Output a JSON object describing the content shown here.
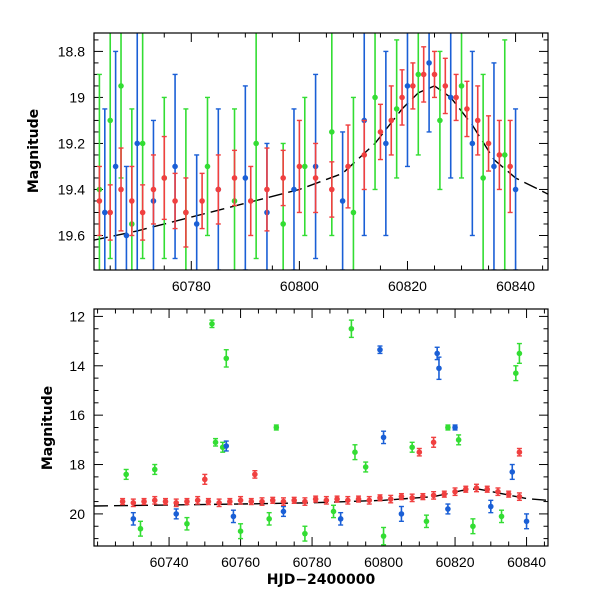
{
  "chart_data": [
    {
      "type": "scatter",
      "title": "",
      "xlabel": "",
      "ylabel": "Magnitude",
      "xlim": [
        60762,
        60846
      ],
      "ylim": [
        19.75,
        18.72
      ],
      "y_inverted": true,
      "grid": false,
      "legend": "none",
      "xticks_major": [
        60780,
        60800,
        60820,
        60840
      ],
      "xtick_labels": [
        "60780",
        "60800",
        "60820",
        "60840"
      ],
      "yticks_major": [
        18.8,
        19,
        19.2,
        19.4,
        19.6
      ],
      "ytick_labels": [
        "18.8",
        "19",
        "19.2",
        "19.4",
        "19.6"
      ],
      "model_curve": [
        [
          60762,
          19.62
        ],
        [
          60770,
          19.58
        ],
        [
          60780,
          19.52
        ],
        [
          60790,
          19.46
        ],
        [
          60800,
          19.4
        ],
        [
          60808,
          19.33
        ],
        [
          60814,
          19.2
        ],
        [
          60819,
          19.05
        ],
        [
          60822,
          18.98
        ],
        [
          60825,
          18.95
        ],
        [
          60828,
          19.0
        ],
        [
          60832,
          19.12
        ],
        [
          60836,
          19.27
        ],
        [
          60840,
          19.35
        ],
        [
          60846,
          19.42
        ]
      ],
      "series": [
        {
          "color": "#33dd33",
          "x": [
            60763,
            60765,
            60767,
            60769,
            60771,
            60775,
            60779,
            60783,
            60788,
            60792,
            60797,
            60801,
            60806,
            60810,
            60814,
            60818,
            60822,
            60826,
            60830,
            60834,
            60838
          ],
          "y": [
            19.4,
            19.1,
            18.95,
            19.55,
            19.2,
            19.35,
            19.5,
            19.3,
            19.45,
            19.2,
            19.55,
            19.3,
            19.15,
            19.5,
            19.0,
            19.05,
            18.9,
            19.1,
            18.95,
            19.35,
            19.25
          ],
          "err": [
            0.5,
            0.6,
            0.4,
            0.5,
            0.5,
            0.35,
            0.45,
            0.3,
            0.4,
            0.5,
            0.35,
            0.3,
            0.45,
            0.5,
            0.4,
            0.3,
            0.35,
            0.3,
            0.4,
            0.45,
            0.5
          ]
        },
        {
          "color": "#1a5fd6",
          "x": [
            60764,
            60766,
            60768,
            60770,
            60773,
            60777,
            60781,
            60785,
            60790,
            60794,
            60799,
            60803,
            60808,
            60812,
            60816,
            60820,
            60824,
            60828,
            60832,
            60836,
            60840
          ],
          "y": [
            19.5,
            19.3,
            19.6,
            19.2,
            19.45,
            19.3,
            19.55,
            19.4,
            19.35,
            19.5,
            19.4,
            19.3,
            19.45,
            19.1,
            19.2,
            18.95,
            18.85,
            19.0,
            19.2,
            19.3,
            19.4
          ],
          "err": [
            0.45,
            0.5,
            0.3,
            0.55,
            0.35,
            0.4,
            0.3,
            0.35,
            0.4,
            0.3,
            0.35,
            0.4,
            0.3,
            0.5,
            0.4,
            0.35,
            0.3,
            0.35,
            0.4,
            0.45,
            0.35
          ]
        },
        {
          "color": "#f04040",
          "x": [
            60763,
            60765,
            60767,
            60769,
            60771,
            60773,
            60775,
            60777,
            60779,
            60782,
            60785,
            60788,
            60791,
            60794,
            60797,
            60800,
            60803,
            60806,
            60809,
            60812,
            60815,
            60817,
            60819,
            60821,
            60823,
            60825,
            60827,
            60829,
            60831,
            60833,
            60835,
            60837,
            60839
          ],
          "y": [
            19.45,
            19.5,
            19.4,
            19.45,
            19.5,
            19.4,
            19.35,
            19.45,
            19.5,
            19.45,
            19.4,
            19.35,
            19.45,
            19.4,
            19.35,
            19.3,
            19.35,
            19.4,
            19.3,
            19.25,
            19.15,
            19.1,
            19.0,
            18.95,
            18.9,
            18.9,
            18.95,
            19.0,
            19.05,
            19.1,
            19.2,
            19.25,
            19.3
          ],
          "err": [
            0.15,
            0.12,
            0.18,
            0.15,
            0.12,
            0.15,
            0.18,
            0.12,
            0.15,
            0.12,
            0.15,
            0.12,
            0.15,
            0.18,
            0.12,
            0.2,
            0.15,
            0.12,
            0.18,
            0.15,
            0.12,
            0.15,
            0.12,
            0.1,
            0.12,
            0.1,
            0.12,
            0.1,
            0.12,
            0.15,
            0.12,
            0.15,
            0.2
          ]
        }
      ]
    },
    {
      "type": "scatter",
      "title": "",
      "xlabel": "HJD−2400000",
      "ylabel": "Magnitude",
      "xlim": [
        60719,
        60846
      ],
      "ylim": [
        21.3,
        11.7
      ],
      "y_inverted": true,
      "grid": false,
      "legend": "none",
      "xticks_major": [
        60740,
        60760,
        60780,
        60800,
        60820,
        60840
      ],
      "xtick_labels": [
        "60740",
        "60760",
        "60780",
        "60800",
        "60820",
        "60840"
      ],
      "yticks_major": [
        12,
        14,
        16,
        18,
        20
      ],
      "ytick_labels": [
        "12",
        "14",
        "16",
        "18",
        "20"
      ],
      "model_curve": [
        [
          60719,
          19.68
        ],
        [
          60740,
          19.64
        ],
        [
          60760,
          19.6
        ],
        [
          60780,
          19.55
        ],
        [
          60800,
          19.45
        ],
        [
          60814,
          19.3
        ],
        [
          60822,
          19.05
        ],
        [
          60826,
          18.98
        ],
        [
          60832,
          19.15
        ],
        [
          60840,
          19.38
        ],
        [
          60846,
          19.45
        ]
      ],
      "series": [
        {
          "color": "#33dd33",
          "x": [
            60728,
            60736,
            60752,
            60753,
            60755,
            60756,
            60770,
            60791,
            60792,
            60795,
            60808,
            60818,
            60821,
            60837,
            60838,
            60732,
            60745,
            60760,
            60768,
            60778,
            60786,
            60800,
            60812,
            60825,
            60833
          ],
          "y": [
            18.4,
            18.2,
            12.3,
            17.1,
            17.3,
            13.7,
            16.5,
            12.5,
            17.5,
            18.1,
            17.3,
            16.5,
            17.0,
            14.3,
            13.5,
            20.6,
            20.4,
            20.7,
            20.2,
            20.8,
            19.9,
            20.9,
            20.3,
            20.5,
            20.1
          ],
          "err": [
            0.2,
            0.2,
            0.15,
            0.15,
            0.2,
            0.35,
            0.1,
            0.35,
            0.3,
            0.2,
            0.2,
            0.1,
            0.2,
            0.3,
            0.4,
            0.3,
            0.25,
            0.3,
            0.25,
            0.3,
            0.25,
            0.35,
            0.25,
            0.3,
            0.25
          ]
        },
        {
          "color": "#1a5fd6",
          "x": [
            60756,
            60799,
            60800,
            60815,
            60815.5,
            60820,
            60836,
            60730,
            60742,
            60758,
            60772,
            60788,
            60805,
            60818,
            60830,
            60840
          ],
          "y": [
            17.25,
            13.35,
            16.9,
            13.5,
            14.1,
            16.5,
            18.3,
            20.2,
            20.0,
            20.1,
            19.9,
            20.2,
            20.0,
            19.8,
            19.7,
            20.3
          ],
          "err": [
            0.2,
            0.15,
            0.25,
            0.25,
            0.45,
            0.1,
            0.3,
            0.25,
            0.2,
            0.25,
            0.2,
            0.25,
            0.3,
            0.2,
            0.25,
            0.3
          ]
        },
        {
          "color": "#f04040",
          "x": [
            60727,
            60730,
            60733,
            60736,
            60739,
            60742,
            60745,
            60748,
            60751,
            60754,
            60757,
            60760,
            60763,
            60766,
            60769,
            60772,
            60775,
            60778,
            60781,
            60784,
            60787,
            60790,
            60793,
            60796,
            60799,
            60802,
            60805,
            60808,
            60811,
            60814,
            60817,
            60820,
            60823,
            60826,
            60829,
            60832,
            60835,
            60838,
            60750,
            60764,
            60810,
            60814,
            60838
          ],
          "y": [
            19.5,
            19.55,
            19.5,
            19.45,
            19.5,
            19.55,
            19.5,
            19.45,
            19.5,
            19.55,
            19.5,
            19.45,
            19.5,
            19.5,
            19.45,
            19.5,
            19.45,
            19.5,
            19.4,
            19.45,
            19.4,
            19.45,
            19.4,
            19.45,
            19.35,
            19.4,
            19.3,
            19.35,
            19.3,
            19.25,
            19.2,
            19.1,
            19.0,
            18.95,
            19.0,
            19.1,
            19.2,
            19.3,
            18.6,
            18.4,
            17.5,
            17.1,
            17.5
          ],
          "err": [
            0.12,
            0.15,
            0.12,
            0.15,
            0.12,
            0.15,
            0.12,
            0.15,
            0.12,
            0.15,
            0.12,
            0.15,
            0.12,
            0.15,
            0.12,
            0.15,
            0.12,
            0.15,
            0.12,
            0.15,
            0.12,
            0.15,
            0.12,
            0.15,
            0.12,
            0.15,
            0.12,
            0.15,
            0.12,
            0.15,
            0.12,
            0.15,
            0.12,
            0.15,
            0.12,
            0.15,
            0.12,
            0.15,
            0.2,
            0.15,
            0.15,
            0.2,
            0.15
          ]
        }
      ]
    }
  ]
}
